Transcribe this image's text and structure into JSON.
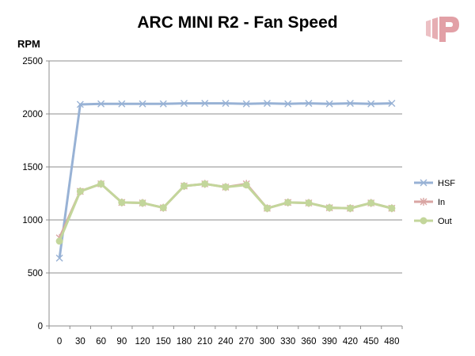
{
  "chart_data": {
    "type": "line",
    "title": "ARC MINI R2 - Fan Speed",
    "ylabel": "RPM",
    "xlabel": "",
    "ylim": [
      0,
      2500
    ],
    "yticks": [
      0,
      500,
      1000,
      1500,
      2000,
      2500
    ],
    "x": [
      0,
      30,
      60,
      90,
      120,
      150,
      180,
      210,
      240,
      270,
      300,
      330,
      360,
      390,
      420,
      450,
      480
    ],
    "grid": true,
    "legend_position": "right",
    "series": [
      {
        "name": "HSF",
        "color": "#98b2d5",
        "marker": "x",
        "values": [
          640,
          2090,
          2095,
          2095,
          2095,
          2095,
          2100,
          2100,
          2100,
          2095,
          2100,
          2095,
          2100,
          2095,
          2100,
          2095,
          2100
        ]
      },
      {
        "name": "In",
        "color": "#d9a5a3",
        "marker": "star",
        "values": [
          830,
          1270,
          1340,
          1165,
          1160,
          1115,
          1320,
          1340,
          1310,
          1340,
          1110,
          1165,
          1160,
          1115,
          1110,
          1160,
          1110
        ]
      },
      {
        "name": "Out",
        "color": "#c3d69b",
        "marker": "circle",
        "values": [
          800,
          1270,
          1340,
          1165,
          1160,
          1115,
          1320,
          1340,
          1310,
          1330,
          1110,
          1165,
          1160,
          1115,
          1110,
          1160,
          1110
        ]
      }
    ]
  },
  "brand": {
    "logo_icon": "brand-logo-icon",
    "logo_color": "#e8b4b8"
  }
}
